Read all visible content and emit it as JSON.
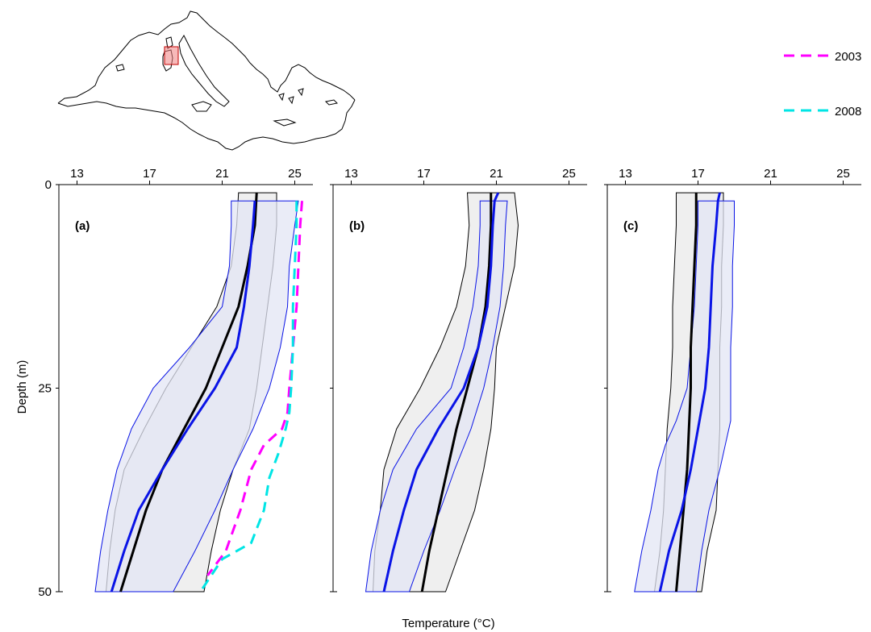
{
  "figure": {
    "ylabel": "Depth (m)",
    "xlabel": "Temperature (°C)",
    "x_ticks": [
      "13",
      "17",
      "21",
      "25"
    ],
    "y_ticks": [
      "0",
      "25",
      "50"
    ]
  },
  "legend": {
    "items": [
      {
        "label": "2003",
        "color": "#ff00ff"
      },
      {
        "label": "2008",
        "color": "#00e5e5"
      }
    ]
  },
  "colors": {
    "black_median": "#000000",
    "blue_median": "#0a14e6",
    "grey_band": "#efefef",
    "blue_band": "#e3e6f4",
    "map_box": "#f08080"
  },
  "chart_data": [
    {
      "type": "line",
      "panel": "(a)",
      "xlim": [
        12,
        26
      ],
      "ylim": [
        50,
        0
      ],
      "y_reversed": true,
      "series": [
        {
          "depth": [
            1,
            5,
            10,
            15,
            20,
            25,
            30,
            35,
            40,
            45,
            50
          ],
          "values": [
            22.9,
            22.8,
            22.4,
            21.9,
            21.0,
            20.1,
            18.9,
            17.7,
            16.8,
            16.1,
            15.4
          ],
          "color": "#000000",
          "style": "solid",
          "width": 3
        },
        {
          "depth": [
            2,
            5,
            10,
            15,
            20,
            25,
            30,
            35,
            40,
            45,
            50
          ],
          "values": [
            22.8,
            22.7,
            22.5,
            22.2,
            21.8,
            20.6,
            19.1,
            17.7,
            16.4,
            15.6,
            14.9
          ],
          "color": "#0a14e6",
          "style": "solid",
          "width": 3
        },
        {
          "depth": [
            2,
            5,
            10,
            15,
            20,
            25,
            28,
            30,
            32,
            35,
            40,
            45,
            48
          ],
          "values": [
            25.4,
            25.3,
            25.2,
            25.1,
            24.9,
            24.7,
            24.6,
            24.3,
            23.3,
            22.6,
            22.0,
            21.2,
            20.2
          ],
          "name": "2003",
          "color": "#ff00ff",
          "style": "dashed",
          "width": 3
        },
        {
          "depth": [
            2,
            5,
            10,
            15,
            20,
            25,
            28,
            30,
            33,
            36,
            40,
            44,
            46,
            50
          ],
          "values": [
            25.1,
            25.1,
            25.0,
            24.9,
            24.9,
            24.8,
            24.7,
            24.5,
            24.1,
            23.6,
            23.3,
            22.6,
            21.0,
            19.8
          ],
          "name": "2008",
          "color": "#00e5e5",
          "style": "dashed",
          "width": 3
        }
      ],
      "bands": [
        {
          "depth": [
            1,
            5,
            10,
            15,
            20,
            25,
            30,
            35,
            40,
            45,
            50
          ],
          "low": [
            21.9,
            21.8,
            21.5,
            20.7,
            19.3,
            17.9,
            16.7,
            15.6,
            15.1,
            14.8,
            14.6
          ],
          "high": [
            24.0,
            24.0,
            23.8,
            23.5,
            23.2,
            22.9,
            22.5,
            21.6,
            20.9,
            20.4,
            20.0
          ],
          "fill": "#efefef",
          "stroke": "#000000"
        },
        {
          "depth": [
            2,
            5,
            10,
            15,
            20,
            25,
            30,
            35,
            40,
            45,
            50
          ],
          "low": [
            21.5,
            21.5,
            21.4,
            21.0,
            19.2,
            17.2,
            16.0,
            15.2,
            14.7,
            14.3,
            14.0
          ],
          "high": [
            25.2,
            25.0,
            24.7,
            24.6,
            24.2,
            23.6,
            22.7,
            21.6,
            20.6,
            19.5,
            18.3
          ],
          "fill": "#e3e6f4",
          "stroke": "#0a14e6"
        }
      ]
    },
    {
      "type": "line",
      "panel": "(b)",
      "xlim": [
        12,
        26
      ],
      "ylim": [
        50,
        0
      ],
      "y_reversed": true,
      "series": [
        {
          "depth": [
            1,
            5,
            10,
            15,
            20,
            25,
            30,
            35,
            40,
            45,
            50
          ],
          "values": [
            20.7,
            20.7,
            20.6,
            20.4,
            20.0,
            19.4,
            18.8,
            18.3,
            17.8,
            17.3,
            16.9
          ],
          "color": "#000000",
          "style": "solid",
          "width": 3
        },
        {
          "depth": [
            1,
            2,
            5,
            10,
            15,
            20,
            25,
            30,
            35,
            40,
            45,
            50
          ],
          "values": [
            21.1,
            20.9,
            20.8,
            20.7,
            20.5,
            20.0,
            19.2,
            17.8,
            16.6,
            15.9,
            15.3,
            14.8
          ],
          "color": "#0a14e6",
          "style": "solid",
          "width": 3
        }
      ],
      "bands": [
        {
          "depth": [
            1,
            5,
            10,
            15,
            20,
            25,
            30,
            35,
            40,
            45,
            50
          ],
          "low": [
            19.4,
            19.5,
            19.3,
            18.8,
            17.9,
            16.8,
            15.5,
            14.8,
            14.6,
            14.3,
            14.2
          ],
          "high": [
            22.0,
            22.2,
            22.0,
            21.5,
            21.0,
            20.9,
            20.7,
            20.3,
            19.8,
            19.0,
            18.2
          ],
          "fill": "#efefef",
          "stroke": "#000000"
        },
        {
          "depth": [
            2,
            5,
            10,
            15,
            20,
            25,
            30,
            35,
            40,
            45,
            50
          ],
          "low": [
            20.1,
            20.1,
            20.0,
            19.7,
            19.2,
            18.5,
            16.6,
            15.3,
            14.6,
            14.1,
            13.8
          ],
          "high": [
            21.6,
            21.5,
            21.4,
            21.2,
            20.8,
            20.3,
            19.6,
            18.7,
            17.9,
            17.0,
            16.2
          ],
          "fill": "#e3e6f4",
          "stroke": "#0a14e6"
        }
      ]
    },
    {
      "type": "line",
      "panel": "(c)",
      "xlim": [
        12,
        26
      ],
      "ylim": [
        50,
        0
      ],
      "y_reversed": true,
      "series": [
        {
          "depth": [
            1,
            5,
            10,
            15,
            20,
            25,
            30,
            35,
            40,
            45,
            50
          ],
          "values": [
            16.9,
            16.9,
            16.8,
            16.7,
            16.6,
            16.6,
            16.5,
            16.4,
            16.2,
            16.0,
            15.8
          ],
          "color": "#000000",
          "style": "solid",
          "width": 3
        },
        {
          "depth": [
            1,
            2,
            5,
            10,
            15,
            20,
            25,
            30,
            35,
            40,
            45,
            50
          ],
          "values": [
            18.2,
            18.1,
            18.0,
            17.8,
            17.7,
            17.6,
            17.4,
            17.0,
            16.6,
            16.1,
            15.4,
            14.9
          ],
          "color": "#0a14e6",
          "style": "solid",
          "width": 3
        }
      ],
      "bands": [
        {
          "depth": [
            1,
            5,
            10,
            15,
            20,
            25,
            30,
            35,
            40,
            45,
            50
          ],
          "low": [
            15.8,
            15.8,
            15.7,
            15.6,
            15.6,
            15.5,
            15.3,
            15.2,
            15.1,
            14.9,
            14.6
          ],
          "high": [
            18.4,
            18.4,
            18.3,
            18.3,
            18.2,
            18.2,
            18.2,
            18.1,
            18.0,
            17.5,
            17.2
          ],
          "fill": "#efefef",
          "stroke": "#000000"
        },
        {
          "depth": [
            2,
            5,
            10,
            15,
            20,
            25,
            29,
            32,
            35,
            40,
            45,
            50
          ],
          "low": [
            17.0,
            17.0,
            16.9,
            16.8,
            16.6,
            16.4,
            15.8,
            15.2,
            14.8,
            14.4,
            13.9,
            13.5
          ],
          "high": [
            19.0,
            19.0,
            18.9,
            18.9,
            18.8,
            18.8,
            18.8,
            18.5,
            18.2,
            17.6,
            17.2,
            16.9
          ],
          "fill": "#e3e6f4",
          "stroke": "#0a14e6"
        }
      ]
    }
  ]
}
